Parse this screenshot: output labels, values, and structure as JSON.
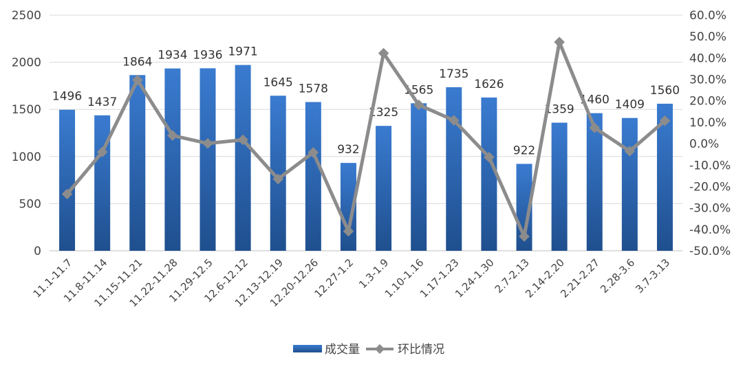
{
  "chart_data": {
    "type": "bar",
    "categories": [
      "11.1-11.7",
      "11.8-11.14",
      "11.15-11.21",
      "11.22-11.28",
      "11.29-12.5",
      "12.6-12.12",
      "12.13-12.19",
      "12.20-12.26",
      "12.27-1.2",
      "1.3-1.9",
      "1.10-1.16",
      "1.17-1.23",
      "1.24-1.30",
      "2.7-2.13",
      "2.14-2.20",
      "2.21-2.27",
      "2.28-3.6",
      "3.7-3.13"
    ],
    "series": [
      {
        "name": "成交量",
        "type": "bar",
        "axis": "left",
        "values": [
          1496,
          1437,
          1864,
          1934,
          1936,
          1971,
          1645,
          1578,
          932,
          1325,
          1565,
          1735,
          1626,
          922,
          1359,
          1460,
          1409,
          1560
        ]
      },
      {
        "name": "环比情况",
        "type": "line",
        "axis": "right",
        "values": [
          -23.5,
          -3.9,
          29.7,
          3.8,
          0.1,
          1.8,
          -16.5,
          -4.1,
          -40.9,
          42.2,
          18.1,
          10.9,
          -6.3,
          -43.3,
          47.4,
          7.4,
          -3.5,
          10.7
        ]
      }
    ],
    "y_left": {
      "ylim": [
        0,
        2500
      ],
      "ticks": [
        "0",
        "500",
        "1000",
        "1500",
        "2000",
        "2500"
      ]
    },
    "y_right": {
      "ylim": [
        -50,
        60
      ],
      "ticks": [
        "-50.0%",
        "-40.0%",
        "-30.0%",
        "-20.0%",
        "-10.0%",
        "0.0%",
        "10.0%",
        "20.0%",
        "30.0%",
        "40.0%",
        "50.0%",
        "60.0%"
      ]
    },
    "legend": {
      "position": "bottom",
      "entries": [
        "成交量",
        "环比情况"
      ]
    },
    "grid": true,
    "colors": {
      "bar": "#2e6bb8",
      "line": "#8c8c8c"
    }
  }
}
